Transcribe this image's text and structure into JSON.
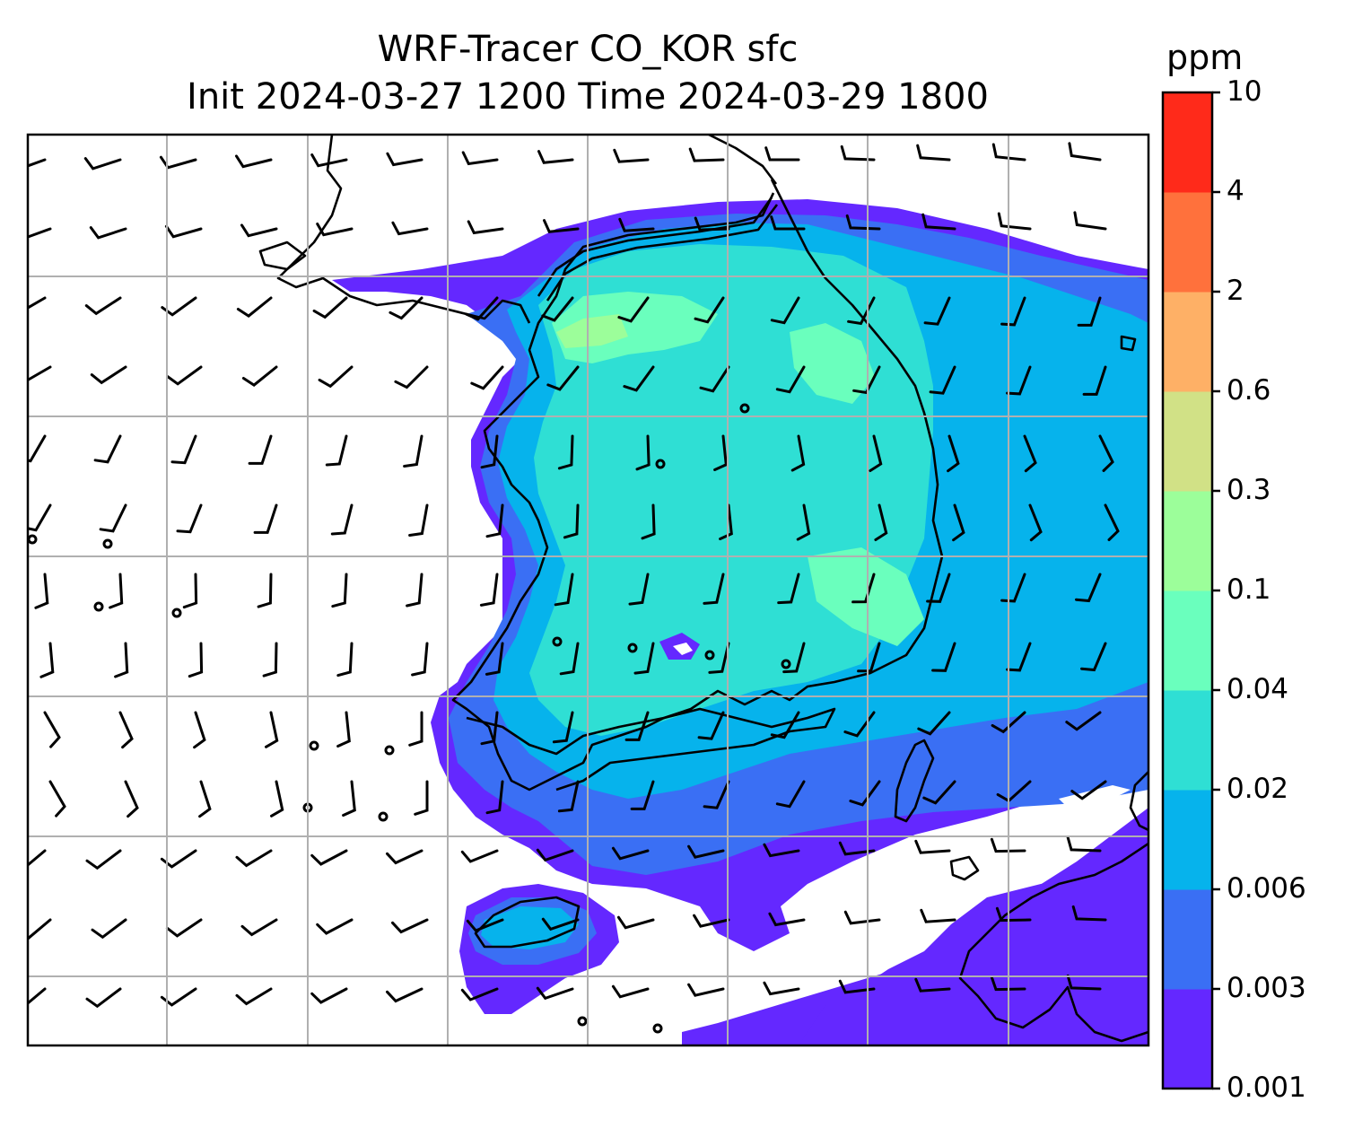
{
  "figure": {
    "title_line1": "WRF-Tracer CO_KOR sfc",
    "title_line2": "Init 2024-03-27 1200 Time 2024-03-29 1800"
  },
  "colorbar": {
    "unit": "ppm",
    "levels": [
      "0.001",
      "0.003",
      "0.006",
      "0.02",
      "0.04",
      "0.1",
      "0.3",
      "0.6",
      "2",
      "4",
      "10"
    ],
    "colors": [
      "#6428ff",
      "#3a6ff4",
      "#06b3ec",
      "#2fdfd4",
      "#6affbd",
      "#9cfe9a",
      "#d1e186",
      "#feb066",
      "#ff713c",
      "#ff2a1a"
    ]
  },
  "map": {
    "grid": true,
    "grid_color": "#b0b0b0",
    "coastline_color": "#000000",
    "wind_barbs": true
  }
}
